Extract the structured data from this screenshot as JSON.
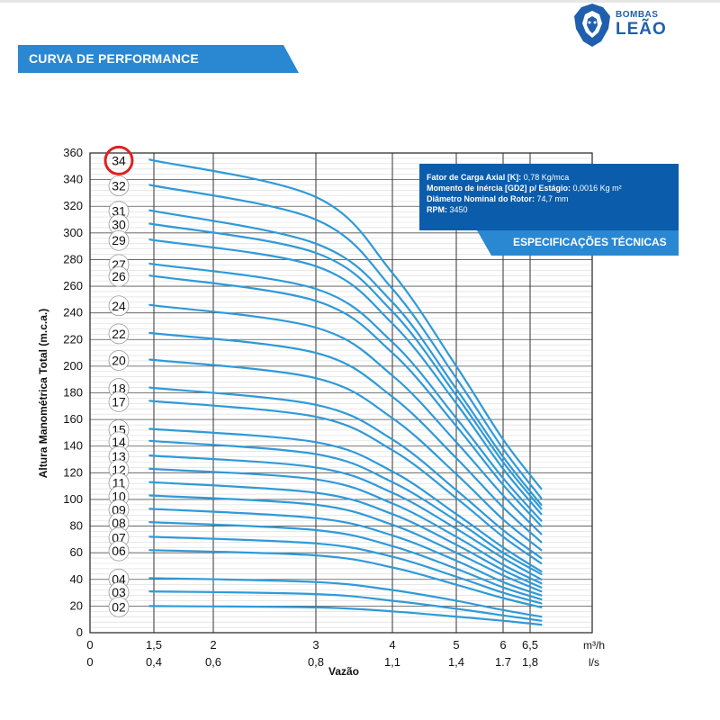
{
  "header": {
    "brand_line1": "BOMBAS",
    "brand_line2": "LEÃO",
    "section_title": "CURVA DE PERFORMANCE"
  },
  "specs": {
    "title": "ESPECIFICAÇÕES TÉCNICAS",
    "rows": [
      {
        "label": "Fator de Carga Axial [K]:",
        "value": "0,78 Kg/mca"
      },
      {
        "label": "Momento de inércia [GD2] p/ Estágio:",
        "value": "0,0016 Kg m²"
      },
      {
        "label": "Diâmetro Nominal do Rotor:",
        "value": "74,7 mm"
      },
      {
        "label": "RPM:",
        "value": "3450"
      }
    ]
  },
  "colors": {
    "curve": "#2f9ad8",
    "accent_blue": "#2a87d2",
    "dark_blue": "#0b5cab",
    "highlight_circle": "#e02020"
  },
  "chart_data": {
    "type": "line",
    "ylabel": "Altura Manométrica Total (m.c.a.)",
    "xlabel": "Vazão",
    "x_unit_primary": "m³/h",
    "x_unit_secondary": "l/s",
    "x_ticks_primary": [
      "0",
      "1,5",
      "2",
      "3",
      "4",
      "5",
      "6",
      "6,5"
    ],
    "x_ticks_secondary": [
      "0",
      "0,4",
      "0,6",
      "0,8",
      "1,1",
      "1,4",
      "1.7",
      "1,8"
    ],
    "x_tick_values": [
      0,
      1.5,
      2,
      3,
      4,
      5,
      6,
      6.5
    ],
    "y_ticks": [
      0,
      20,
      40,
      60,
      80,
      100,
      120,
      140,
      160,
      180,
      200,
      220,
      240,
      260,
      280,
      300,
      320,
      340,
      360
    ],
    "ylim": [
      0,
      360
    ],
    "grid": true,
    "highlighted_stage": "34",
    "series": [
      {
        "name": "34",
        "values": [
          [
            1.4,
            355
          ],
          [
            3.0,
            327
          ],
          [
            4.0,
            270
          ],
          [
            5.0,
            200
          ],
          [
            6.0,
            145
          ],
          [
            6.7,
            108
          ]
        ]
      },
      {
        "name": "32",
        "values": [
          [
            1.4,
            336
          ],
          [
            3.0,
            310
          ],
          [
            4.0,
            258
          ],
          [
            5.0,
            191
          ],
          [
            6.0,
            138
          ],
          [
            6.7,
            101
          ]
        ]
      },
      {
        "name": "31",
        "values": [
          [
            1.4,
            317
          ],
          [
            3.0,
            292
          ],
          [
            4.0,
            248
          ],
          [
            5.0,
            183
          ],
          [
            6.0,
            132
          ],
          [
            6.7,
            96
          ]
        ]
      },
      {
        "name": "30",
        "values": [
          [
            1.4,
            307
          ],
          [
            3.0,
            285
          ],
          [
            4.0,
            241
          ],
          [
            5.0,
            178
          ],
          [
            6.0,
            128
          ],
          [
            6.7,
            93
          ]
        ]
      },
      {
        "name": "29",
        "values": [
          [
            1.4,
            295
          ],
          [
            3.0,
            275
          ],
          [
            4.0,
            232
          ],
          [
            5.0,
            172
          ],
          [
            6.0,
            123
          ],
          [
            6.7,
            89
          ]
        ]
      },
      {
        "name": "27",
        "values": [
          [
            1.4,
            277
          ],
          [
            3.0,
            258
          ],
          [
            4.0,
            218
          ],
          [
            5.0,
            161
          ],
          [
            6.0,
            116
          ],
          [
            6.7,
            84
          ]
        ]
      },
      {
        "name": "26",
        "values": [
          [
            1.4,
            268
          ],
          [
            3.0,
            249
          ],
          [
            4.0,
            210
          ],
          [
            5.0,
            155
          ],
          [
            6.0,
            111
          ],
          [
            6.7,
            80
          ]
        ]
      },
      {
        "name": "24",
        "values": [
          [
            1.4,
            246
          ],
          [
            3.0,
            229
          ],
          [
            4.0,
            193
          ],
          [
            5.0,
            143
          ],
          [
            6.0,
            103
          ],
          [
            6.7,
            74
          ]
        ]
      },
      {
        "name": "22",
        "values": [
          [
            1.4,
            225
          ],
          [
            3.0,
            210
          ],
          [
            4.0,
            177
          ],
          [
            5.0,
            131
          ],
          [
            6.0,
            94
          ],
          [
            6.7,
            68
          ]
        ]
      },
      {
        "name": "20",
        "values": [
          [
            1.4,
            205
          ],
          [
            3.0,
            191
          ],
          [
            4.0,
            161
          ],
          [
            5.0,
            119
          ],
          [
            6.0,
            85
          ],
          [
            6.7,
            62
          ]
        ]
      },
      {
        "name": "18",
        "values": [
          [
            1.4,
            184
          ],
          [
            3.0,
            171
          ],
          [
            4.0,
            145
          ],
          [
            5.0,
            107
          ],
          [
            6.0,
            77
          ],
          [
            6.7,
            56
          ]
        ]
      },
      {
        "name": "17",
        "values": [
          [
            1.4,
            174
          ],
          [
            3.0,
            162
          ],
          [
            4.0,
            137
          ],
          [
            5.0,
            101
          ],
          [
            6.0,
            72
          ],
          [
            6.7,
            52
          ]
        ]
      },
      {
        "name": "15",
        "values": [
          [
            1.4,
            153
          ],
          [
            3.0,
            143
          ],
          [
            4.0,
            121
          ],
          [
            5.0,
            89
          ],
          [
            6.0,
            64
          ],
          [
            6.7,
            46
          ]
        ]
      },
      {
        "name": "14",
        "values": [
          [
            1.4,
            144
          ],
          [
            3.0,
            134
          ],
          [
            4.0,
            113
          ],
          [
            5.0,
            84
          ],
          [
            6.0,
            60
          ],
          [
            6.7,
            44
          ]
        ]
      },
      {
        "name": "13",
        "values": [
          [
            1.4,
            133
          ],
          [
            3.0,
            124
          ],
          [
            4.0,
            105
          ],
          [
            5.0,
            78
          ],
          [
            6.0,
            56
          ],
          [
            6.7,
            40
          ]
        ]
      },
      {
        "name": "12",
        "values": [
          [
            1.4,
            123
          ],
          [
            3.0,
            115
          ],
          [
            4.0,
            97
          ],
          [
            5.0,
            72
          ],
          [
            6.0,
            51
          ],
          [
            6.7,
            37
          ]
        ]
      },
      {
        "name": "11",
        "values": [
          [
            1.4,
            113
          ],
          [
            3.0,
            105
          ],
          [
            4.0,
            89
          ],
          [
            5.0,
            66
          ],
          [
            6.0,
            47
          ],
          [
            6.7,
            34
          ]
        ]
      },
      {
        "name": "10",
        "values": [
          [
            1.4,
            103
          ],
          [
            3.0,
            96
          ],
          [
            4.0,
            81
          ],
          [
            5.0,
            60
          ],
          [
            6.0,
            43
          ],
          [
            6.7,
            31
          ]
        ]
      },
      {
        "name": "09",
        "values": [
          [
            1.4,
            93
          ],
          [
            3.0,
            86
          ],
          [
            4.0,
            73
          ],
          [
            5.0,
            54
          ],
          [
            6.0,
            38
          ],
          [
            6.7,
            28
          ]
        ]
      },
      {
        "name": "08",
        "values": [
          [
            1.4,
            83
          ],
          [
            3.0,
            77
          ],
          [
            4.0,
            65
          ],
          [
            5.0,
            48
          ],
          [
            6.0,
            34
          ],
          [
            6.7,
            25
          ]
        ]
      },
      {
        "name": "07",
        "values": [
          [
            1.4,
            72
          ],
          [
            3.0,
            67
          ],
          [
            4.0,
            57
          ],
          [
            5.0,
            42
          ],
          [
            6.0,
            30
          ],
          [
            6.7,
            22
          ]
        ]
      },
      {
        "name": "06",
        "values": [
          [
            1.4,
            62
          ],
          [
            3.0,
            58
          ],
          [
            4.0,
            49
          ],
          [
            5.0,
            36
          ],
          [
            6.0,
            26
          ],
          [
            6.7,
            19
          ]
        ]
      },
      {
        "name": "04",
        "values": [
          [
            1.4,
            41
          ],
          [
            3.0,
            38
          ],
          [
            4.0,
            32
          ],
          [
            5.0,
            24
          ],
          [
            6.0,
            17
          ],
          [
            6.7,
            12
          ]
        ]
      },
      {
        "name": "03",
        "values": [
          [
            1.4,
            31
          ],
          [
            3.0,
            29
          ],
          [
            4.0,
            24
          ],
          [
            5.0,
            18
          ],
          [
            6.0,
            13
          ],
          [
            6.7,
            9
          ]
        ]
      },
      {
        "name": "02",
        "values": [
          [
            1.4,
            20
          ],
          [
            3.0,
            19
          ],
          [
            4.0,
            16
          ],
          [
            5.0,
            12
          ],
          [
            6.0,
            9
          ],
          [
            6.7,
            6
          ]
        ]
      }
    ]
  }
}
